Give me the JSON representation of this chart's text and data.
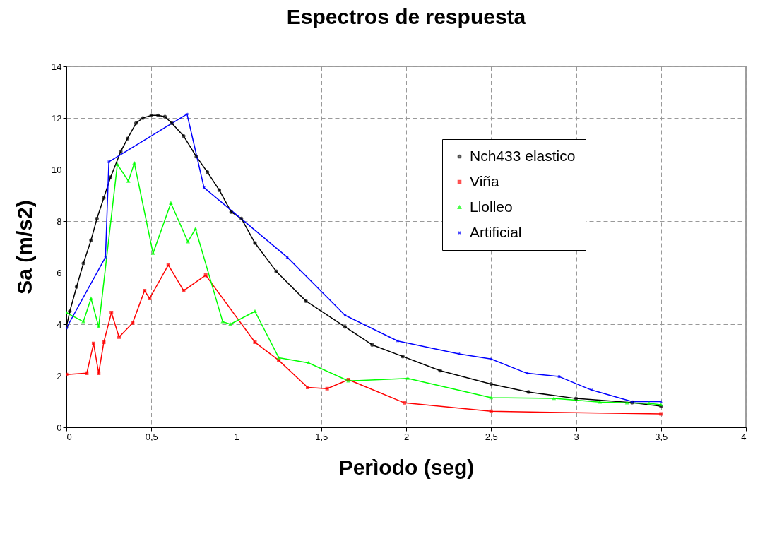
{
  "chart_data": {
    "type": "line",
    "title": "Espectros de respuesta",
    "xlabel": "Perìodo (seg)",
    "ylabel": "Sa (m/s2)",
    "xlim": [
      0,
      4
    ],
    "xticks": [
      0,
      {
        "value": 0.5,
        "label": "0,5"
      },
      1,
      {
        "value": 1.5,
        "label": "1,5"
      },
      2,
      {
        "value": 2.5,
        "label": "2,5"
      },
      3,
      {
        "value": 3.5,
        "label": "3,5"
      },
      4
    ],
    "ylim": [
      0,
      14
    ],
    "yticks": [
      0,
      2,
      4,
      6,
      8,
      10,
      12,
      14
    ],
    "grid": true,
    "legend": "top right",
    "series": [
      {
        "name": "Nch433 elastico",
        "color": "#000000",
        "marker": "circle",
        "x": [
          0,
          0.02,
          0.06,
          0.1,
          0.145,
          0.18,
          0.22,
          0.26,
          0.32,
          0.36,
          0.41,
          0.45,
          0.5,
          0.54,
          0.58,
          0.62,
          0.69,
          0.765,
          0.83,
          0.9,
          0.97,
          1.03,
          1.11,
          1.235,
          1.41,
          1.64,
          1.8,
          1.98,
          2.2,
          2.5,
          2.72,
          3.0,
          3.33,
          3.5
        ],
        "values": [
          3.9,
          4.5,
          5.45,
          6.36,
          7.26,
          8.1,
          8.9,
          9.7,
          10.7,
          11.2,
          11.8,
          12.0,
          12.1,
          12.1,
          12.05,
          11.8,
          11.3,
          10.5,
          9.9,
          9.2,
          8.35,
          8.1,
          7.15,
          6.05,
          4.9,
          3.9,
          3.2,
          2.75,
          2.2,
          1.68,
          1.37,
          1.12,
          0.96,
          0.82
        ]
      },
      {
        "name": "Viña",
        "color": "#ff0000",
        "marker": "square",
        "x": [
          0,
          0.12,
          0.16,
          0.19,
          0.22,
          0.265,
          0.31,
          0.39,
          0.46,
          0.49,
          0.6,
          0.69,
          0.82,
          1.11,
          1.25,
          1.42,
          1.535,
          1.66,
          1.99,
          2.5,
          3.5
        ],
        "values": [
          2.05,
          2.1,
          3.25,
          2.1,
          3.3,
          4.45,
          3.5,
          4.05,
          5.3,
          5.0,
          6.3,
          5.3,
          5.9,
          3.3,
          2.6,
          1.55,
          1.5,
          1.85,
          0.95,
          0.62,
          0.52
        ]
      },
      {
        "name": "Llolleo",
        "color": "#00ff00",
        "marker": "triangle",
        "x": [
          0,
          0.1,
          0.145,
          0.19,
          0.3,
          0.365,
          0.4,
          0.51,
          0.615,
          0.715,
          0.76,
          0.92,
          0.965,
          1.11,
          1.25,
          1.425,
          1.66,
          2.01,
          2.5,
          2.87,
          3.14,
          3.3,
          3.43,
          3.5
        ],
        "values": [
          4.45,
          4.1,
          5.0,
          3.9,
          10.2,
          9.55,
          10.25,
          6.75,
          8.7,
          7.2,
          7.7,
          4.1,
          4.0,
          4.5,
          2.7,
          2.5,
          1.8,
          1.9,
          1.15,
          1.12,
          0.98,
          0.95,
          0.93,
          0.88
        ]
      },
      {
        "name": "Artificial",
        "color": "#0000ff",
        "marker": "cross",
        "x": [
          0,
          0.23,
          0.25,
          0.71,
          0.81,
          1.3,
          1.64,
          1.95,
          2.31,
          2.5,
          2.71,
          2.9,
          3.09,
          3.33,
          3.5
        ],
        "values": [
          3.85,
          6.6,
          10.3,
          12.15,
          9.3,
          6.6,
          4.35,
          3.35,
          2.85,
          2.65,
          2.1,
          1.97,
          1.45,
          1.0,
          1.0
        ]
      }
    ]
  }
}
